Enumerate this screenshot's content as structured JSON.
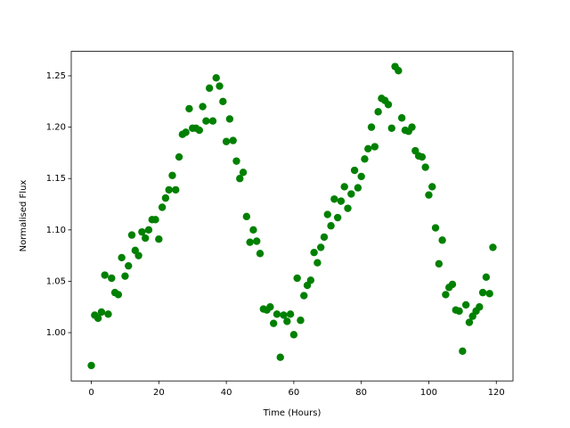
{
  "chart_data": {
    "type": "scatter",
    "x_label": "Time (Hours)",
    "y_label": "Normalised Flux",
    "series": [
      {
        "color": "#008000",
        "x": [
          0,
          1,
          2,
          3,
          4,
          5,
          6,
          7,
          8,
          9,
          10,
          11,
          12,
          13,
          14,
          15,
          16,
          17,
          18,
          19,
          20,
          21,
          22,
          23,
          24,
          25,
          26,
          27,
          28,
          29,
          30,
          31,
          32,
          33,
          34,
          35,
          36,
          37,
          38,
          39,
          40,
          41,
          42,
          43,
          44,
          45,
          46,
          47,
          48,
          49,
          50,
          51,
          52,
          53,
          54,
          55,
          56,
          57,
          58,
          59,
          60,
          61,
          62,
          63,
          64,
          65,
          66,
          67,
          68,
          69,
          70,
          71,
          72,
          73,
          74,
          75,
          76,
          77,
          78,
          79,
          80,
          81,
          82,
          83,
          84,
          85,
          86,
          87,
          88,
          89,
          90,
          91,
          92,
          93,
          94,
          95,
          96,
          97,
          98,
          99,
          100,
          101,
          102,
          103,
          104,
          105,
          106,
          107,
          108,
          109,
          110,
          111,
          112,
          113,
          114,
          115,
          116,
          117,
          118,
          119
        ],
        "values": [
          0.968,
          1.017,
          1.014,
          1.02,
          1.056,
          1.018,
          1.053,
          1.039,
          1.037,
          1.073,
          1.055,
          1.065,
          1.095,
          1.08,
          1.075,
          1.098,
          1.092,
          1.1,
          1.11,
          1.11,
          1.091,
          1.122,
          1.131,
          1.139,
          1.153,
          1.139,
          1.171,
          1.193,
          1.195,
          1.218,
          1.199,
          1.199,
          1.197,
          1.22,
          1.206,
          1.238,
          1.206,
          1.248,
          1.24,
          1.225,
          1.186,
          1.208,
          1.187,
          1.167,
          1.15,
          1.156,
          1.113,
          1.088,
          1.1,
          1.089,
          1.077,
          1.023,
          1.022,
          1.025,
          1.009,
          1.018,
          0.976,
          1.017,
          1.011,
          1.018,
          0.998,
          1.053,
          1.012,
          1.036,
          1.046,
          1.051,
          1.078,
          1.068,
          1.083,
          1.093,
          1.115,
          1.104,
          1.13,
          1.112,
          1.128,
          1.142,
          1.121,
          1.135,
          1.158,
          1.141,
          1.152,
          1.169,
          1.179,
          1.2,
          1.181,
          1.215,
          1.228,
          1.226,
          1.222,
          1.199,
          1.259,
          1.255,
          1.209,
          1.197,
          1.196,
          1.2,
          1.177,
          1.172,
          1.171,
          1.161,
          1.134,
          1.142,
          1.102,
          1.067,
          1.09,
          1.037,
          1.044,
          1.047,
          1.022,
          1.021,
          0.982,
          1.027,
          1.01,
          1.016,
          1.021,
          1.025,
          1.039,
          1.054,
          1.038,
          1.083
        ]
      }
    ],
    "xlim": [
      -5.95,
      124.95
    ],
    "xticks": [
      0,
      20,
      40,
      60,
      80,
      100,
      120
    ],
    "ylim": [
      0.953,
      1.2738
    ],
    "yticks": [
      {
        "value": 1,
        "label": "1.00"
      },
      1.05,
      {
        "value": 1.1,
        "label": "1.10"
      },
      1.15,
      {
        "value": 1.2,
        "label": "1.20"
      },
      1.25
    ]
  }
}
